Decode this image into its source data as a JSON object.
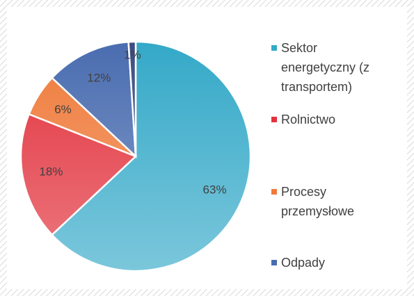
{
  "chart_data": {
    "type": "pie",
    "categories": [
      "Sektor energetyczny (z transportem)",
      "Rolnictwo",
      "Procesy przemysłowe",
      "Odpady",
      null
    ],
    "values": [
      63,
      18,
      6,
      12,
      1
    ],
    "value_labels": [
      "63%",
      "18%",
      "6%",
      "12%",
      "1%"
    ],
    "colors": [
      "#34a9c8",
      "#e2323d",
      "#ef7b3b",
      "#4a6db0",
      "#3d4b80"
    ],
    "legend": "right"
  }
}
